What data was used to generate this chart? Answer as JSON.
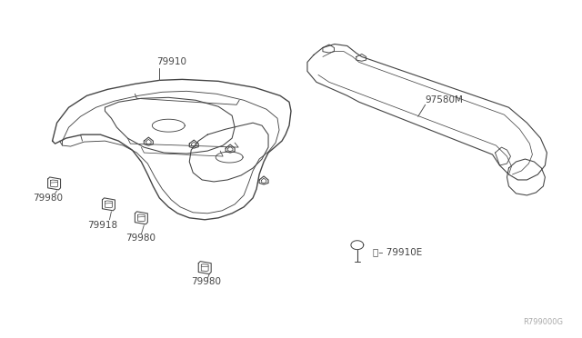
{
  "background_color": "#ffffff",
  "fig_width": 6.4,
  "fig_height": 3.72,
  "dpi": 100,
  "watermark": "R799000G",
  "line_color": "#444444",
  "line_width": 0.9
}
